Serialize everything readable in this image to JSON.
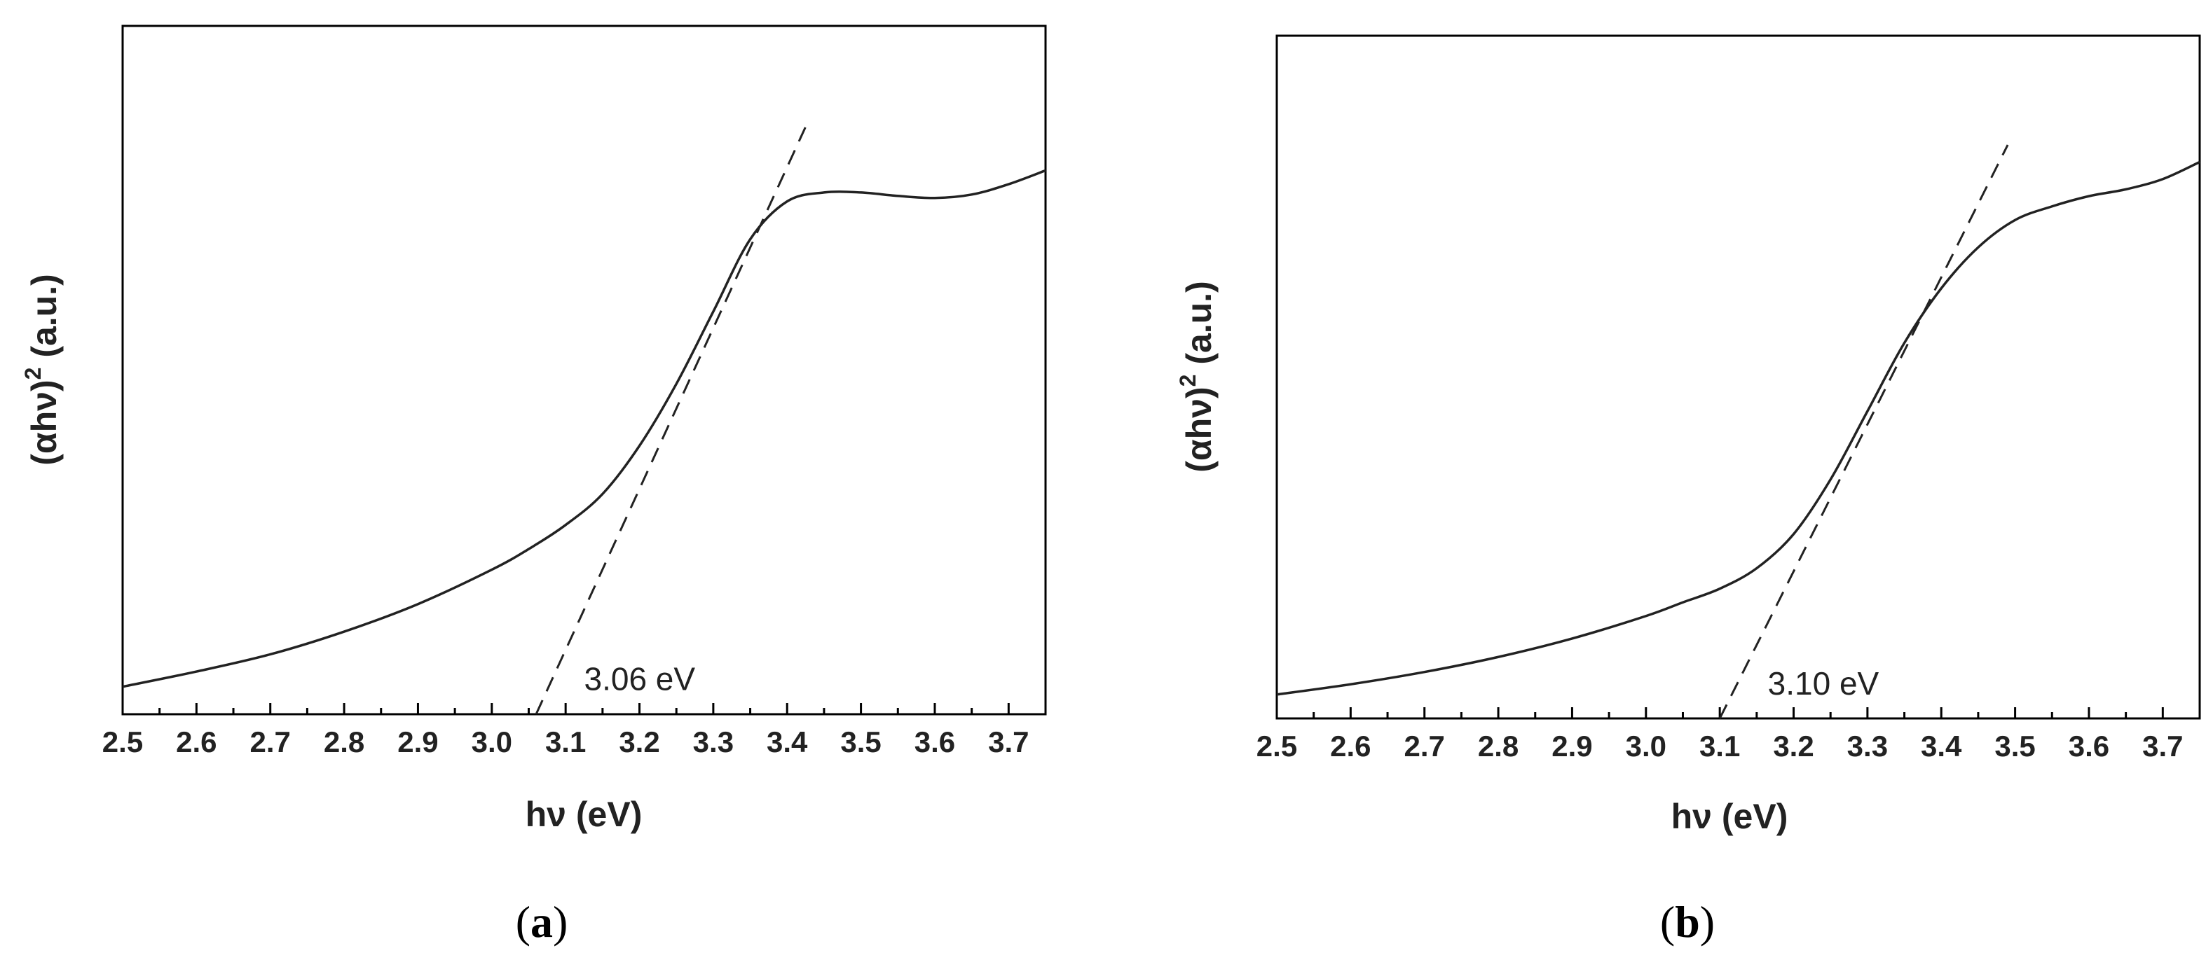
{
  "chart_data": [
    {
      "type": "line",
      "panel_label_open": "(",
      "panel_letter": "a",
      "panel_label_close": ")",
      "title": "",
      "xlabel": "hν (eV)",
      "ylabel_main": "(αhν)",
      "ylabel_sup": "2",
      "ylabel_unit": " (a.u.)",
      "xlim": [
        2.5,
        3.75
      ],
      "ylim": [
        0,
        1
      ],
      "y_ticks_shown": false,
      "grid": false,
      "xticks": [
        "2.5",
        "2.6",
        "2.7",
        "2.8",
        "2.9",
        "3.0",
        "3.1",
        "3.2",
        "3.3",
        "3.4",
        "3.5",
        "3.6",
        "3.7"
      ],
      "series": [
        {
          "style": "solid",
          "x": [
            2.5,
            2.6,
            2.7,
            2.8,
            2.9,
            3.0,
            3.05,
            3.1,
            3.15,
            3.2,
            3.25,
            3.3,
            3.35,
            3.4,
            3.45,
            3.5,
            3.55,
            3.6,
            3.65,
            3.7,
            3.75
          ],
          "y": [
            0.04,
            0.062,
            0.087,
            0.12,
            0.16,
            0.21,
            0.24,
            0.275,
            0.32,
            0.39,
            0.48,
            0.585,
            0.69,
            0.745,
            0.758,
            0.758,
            0.753,
            0.75,
            0.755,
            0.77,
            0.79
          ]
        },
        {
          "style": "dashed",
          "x": [
            3.06,
            3.43
          ],
          "y": [
            0.0,
            0.865
          ]
        }
      ],
      "annotations": [
        {
          "text": "3.06 eV",
          "x": 3.125,
          "y": 0.035
        }
      ]
    },
    {
      "type": "line",
      "panel_label_open": "(",
      "panel_letter": "b",
      "panel_label_close": ")",
      "title": "",
      "xlabel": "hν (eV)",
      "ylabel_main": "(αhν)",
      "ylabel_sup": "2",
      "ylabel_unit": " (a.u.)",
      "xlim": [
        2.5,
        3.75
      ],
      "ylim": [
        0,
        1
      ],
      "y_ticks_shown": false,
      "grid": false,
      "xticks": [
        "2.5",
        "2.6",
        "2.7",
        "2.8",
        "2.9",
        "3.0",
        "3.1",
        "3.2",
        "3.3",
        "3.4",
        "3.5",
        "3.6",
        "3.7"
      ],
      "series": [
        {
          "style": "solid",
          "x": [
            2.5,
            2.6,
            2.7,
            2.8,
            2.9,
            3.0,
            3.05,
            3.1,
            3.15,
            3.2,
            3.25,
            3.3,
            3.35,
            3.4,
            3.45,
            3.5,
            3.55,
            3.6,
            3.65,
            3.7,
            3.75
          ],
          "y": [
            0.035,
            0.05,
            0.068,
            0.09,
            0.117,
            0.15,
            0.17,
            0.19,
            0.22,
            0.27,
            0.35,
            0.45,
            0.55,
            0.63,
            0.69,
            0.73,
            0.75,
            0.765,
            0.775,
            0.79,
            0.815
          ]
        },
        {
          "style": "dashed",
          "x": [
            3.1,
            3.49
          ],
          "y": [
            0.0,
            0.84
          ]
        }
      ],
      "annotations": [
        {
          "text": "3.10 eV",
          "x": 3.165,
          "y": 0.035
        }
      ]
    }
  ]
}
